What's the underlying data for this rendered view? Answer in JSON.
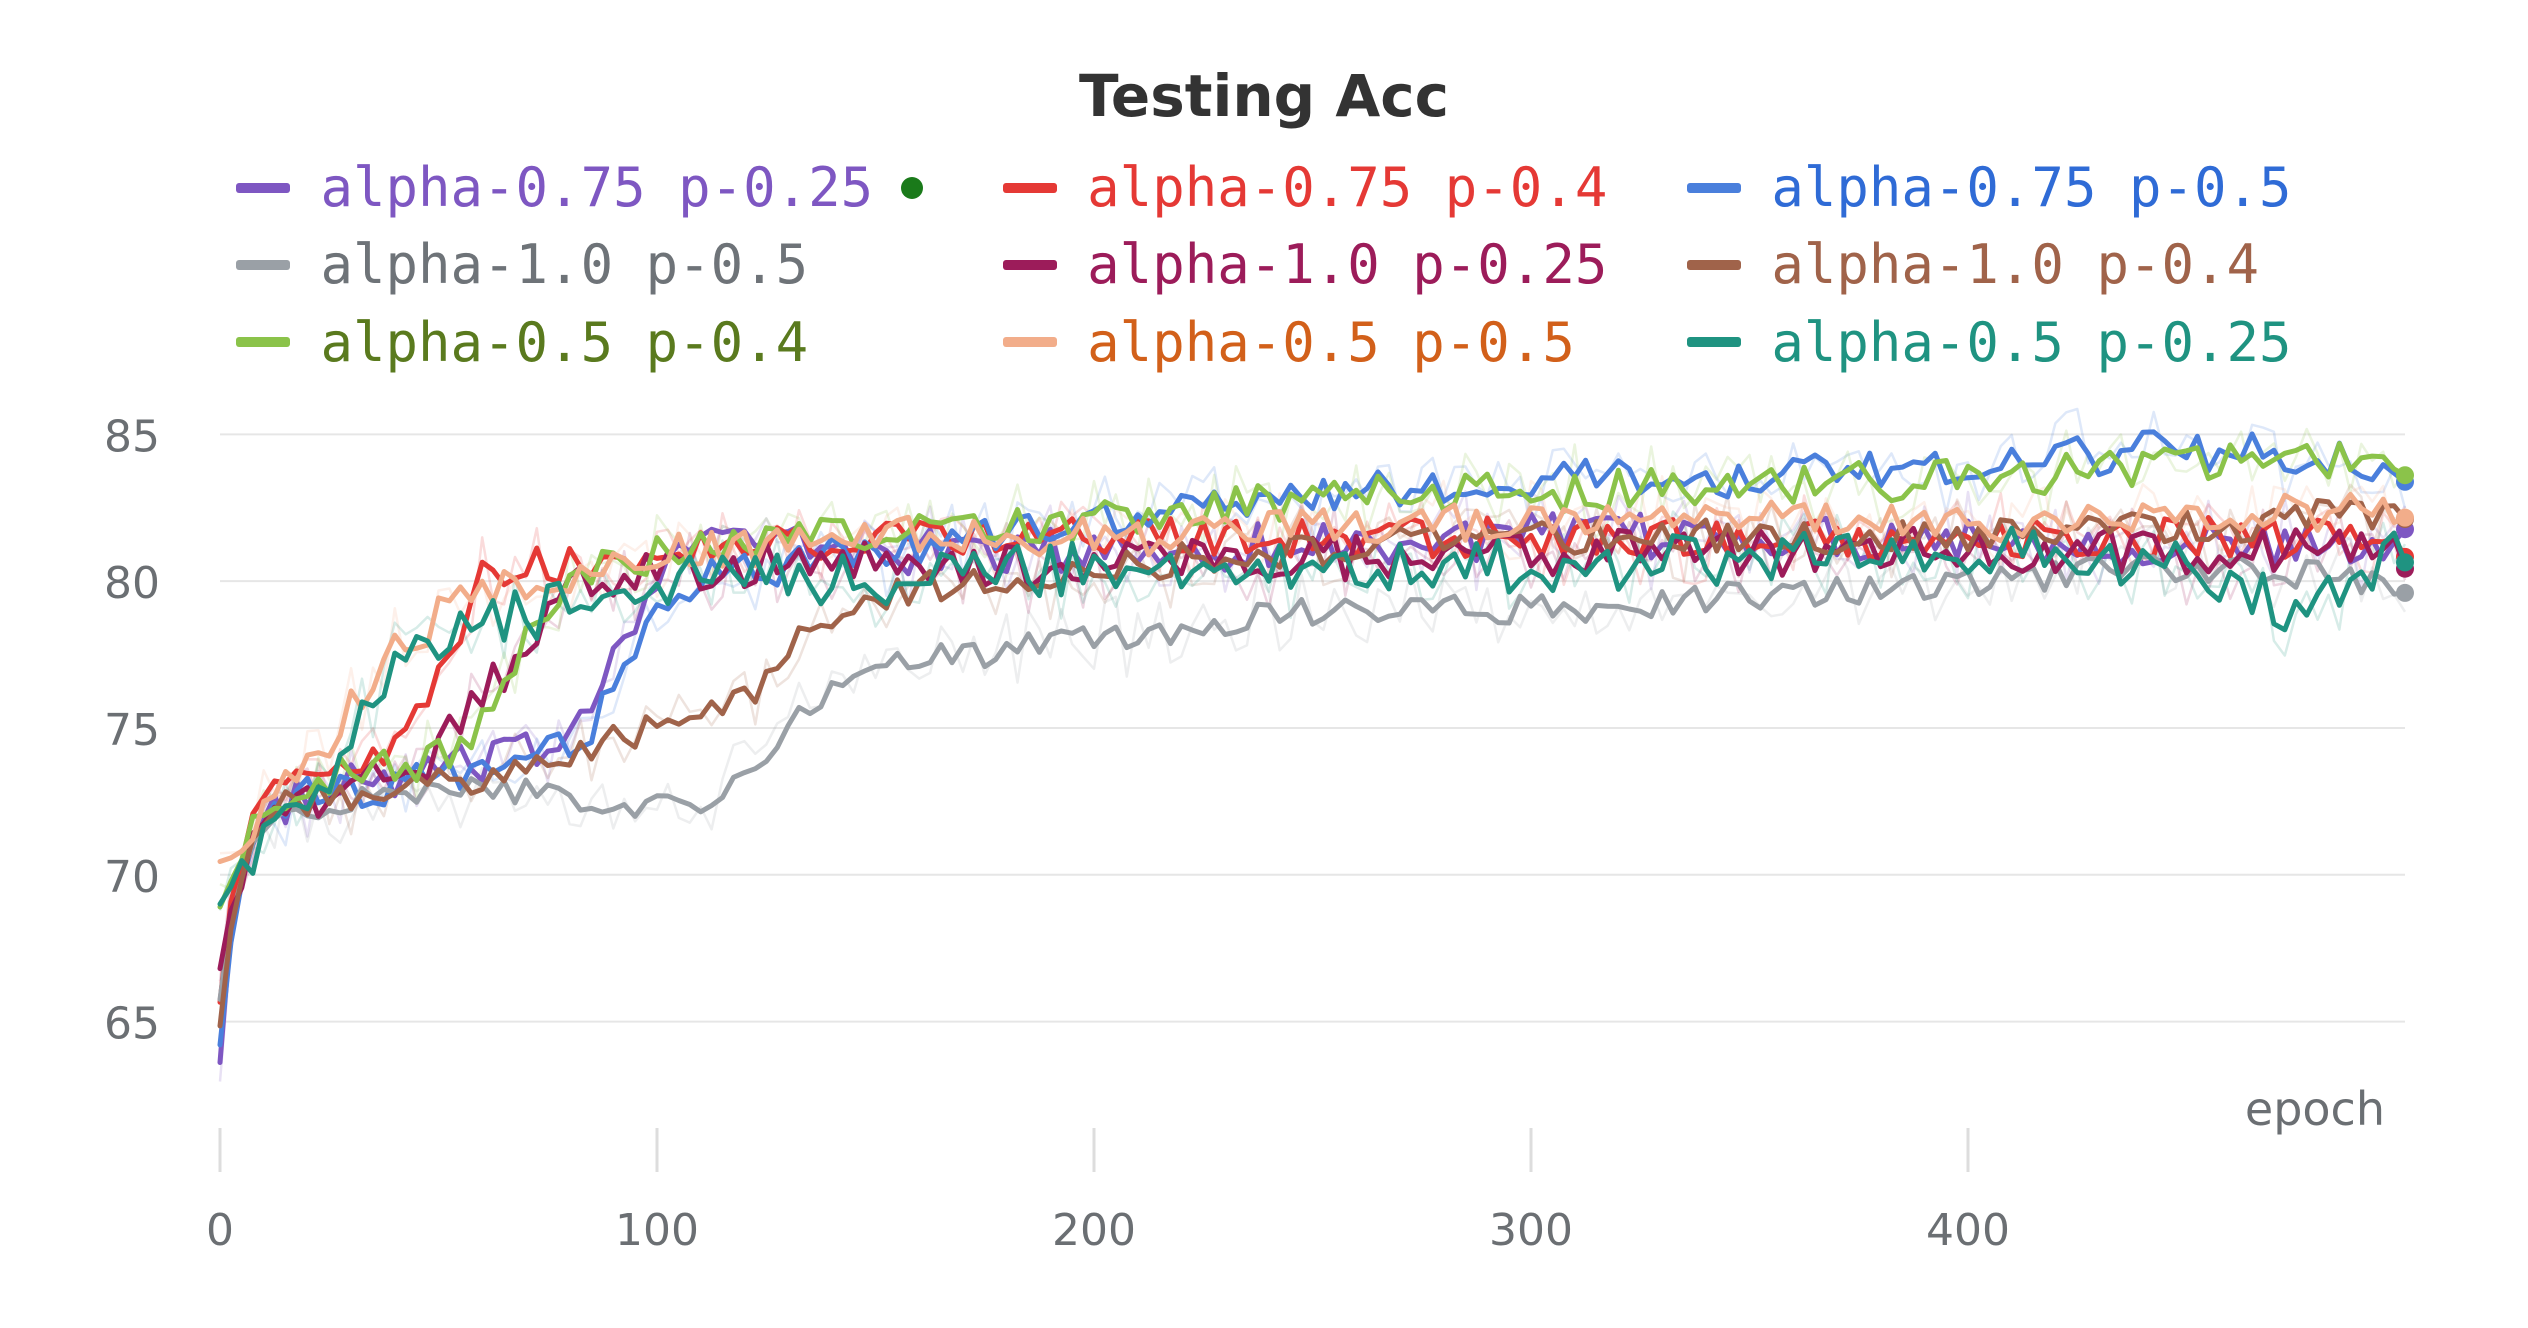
{
  "chart_data": {
    "type": "line",
    "title": "Testing Acc",
    "xlabel": "epoch",
    "ylabel": "",
    "xlim": [
      0,
      500
    ],
    "ylim": [
      62.5,
      86
    ],
    "x_ticks": [
      "0",
      "100",
      "200",
      "300",
      "400"
    ],
    "y_ticks": [
      "65",
      "70",
      "75",
      "80",
      "85"
    ],
    "grid": true,
    "legend_position": "top",
    "series": [
      {
        "name": "alpha-0.75 p-0.25",
        "color": "#7e57c2",
        "text_color": "#7e57c2",
        "marker": true,
        "points": [
          [
            0,
            64
          ],
          [
            3,
            69
          ],
          [
            8,
            71
          ],
          [
            15,
            72.5
          ],
          [
            30,
            73
          ],
          [
            50,
            73.5
          ],
          [
            70,
            74
          ],
          [
            80,
            75
          ],
          [
            90,
            77.5
          ],
          [
            100,
            80.5
          ],
          [
            110,
            81.5
          ],
          [
            150,
            81
          ],
          [
            200,
            81
          ],
          [
            300,
            81.5
          ],
          [
            400,
            81.5
          ],
          [
            500,
            81
          ]
        ],
        "noise": 0.8
      },
      {
        "name": "alpha-0.75 p-0.4",
        "color": "#e53935",
        "text_color": "#e53935",
        "points": [
          [
            0,
            66
          ],
          [
            3,
            70
          ],
          [
            8,
            72
          ],
          [
            15,
            73
          ],
          [
            25,
            73.5
          ],
          [
            40,
            74
          ],
          [
            50,
            77
          ],
          [
            60,
            80
          ],
          [
            70,
            80.5
          ],
          [
            100,
            81
          ],
          [
            150,
            81.5
          ],
          [
            200,
            81.5
          ],
          [
            300,
            81.5
          ],
          [
            400,
            81.5
          ],
          [
            500,
            81.5
          ]
        ],
        "noise": 0.7
      },
      {
        "name": "alpha-0.75 p-0.5",
        "color": "#4a7fdc",
        "text_color": "#2f6bd6",
        "points": [
          [
            0,
            64.5
          ],
          [
            3,
            68
          ],
          [
            8,
            71
          ],
          [
            15,
            72.5
          ],
          [
            40,
            73
          ],
          [
            60,
            73.5
          ],
          [
            75,
            74
          ],
          [
            85,
            75
          ],
          [
            95,
            78
          ],
          [
            105,
            80
          ],
          [
            150,
            81
          ],
          [
            200,
            82
          ],
          [
            250,
            83
          ],
          [
            300,
            83.5
          ],
          [
            350,
            83.5
          ],
          [
            400,
            84
          ],
          [
            450,
            84.5
          ],
          [
            500,
            84
          ]
        ],
        "noise": 0.7
      },
      {
        "name": "alpha-1.0 p-0.5",
        "color": "#9aa0a6",
        "text_color": "#6e7378",
        "points": [
          [
            0,
            66
          ],
          [
            3,
            69
          ],
          [
            8,
            71
          ],
          [
            15,
            72
          ],
          [
            30,
            72.5
          ],
          [
            60,
            73
          ],
          [
            90,
            72.5
          ],
          [
            110,
            72
          ],
          [
            120,
            73.5
          ],
          [
            130,
            75
          ],
          [
            145,
            77
          ],
          [
            170,
            77.5
          ],
          [
            200,
            78
          ],
          [
            250,
            79
          ],
          [
            300,
            79
          ],
          [
            350,
            79.5
          ],
          [
            400,
            80
          ],
          [
            450,
            80.5
          ],
          [
            500,
            80
          ]
        ],
        "noise": 0.5
      },
      {
        "name": "alpha-1.0 p-0.25",
        "color": "#9c1c5a",
        "text_color": "#9c1c5a",
        "points": [
          [
            0,
            67
          ],
          [
            3,
            69.5
          ],
          [
            8,
            71
          ],
          [
            15,
            72.5
          ],
          [
            30,
            73
          ],
          [
            45,
            73.5
          ],
          [
            55,
            75
          ],
          [
            65,
            77
          ],
          [
            75,
            79
          ],
          [
            85,
            80
          ],
          [
            100,
            80.5
          ],
          [
            150,
            80.5
          ],
          [
            200,
            80.5
          ],
          [
            300,
            81
          ],
          [
            400,
            81
          ],
          [
            500,
            81
          ]
        ],
        "noise": 0.8
      },
      {
        "name": "alpha-1.0 p-0.4",
        "color": "#a0634a",
        "text_color": "#a0634a",
        "points": [
          [
            0,
            65
          ],
          [
            3,
            68.5
          ],
          [
            8,
            71
          ],
          [
            15,
            72.5
          ],
          [
            40,
            73
          ],
          [
            70,
            73.5
          ],
          [
            90,
            74.5
          ],
          [
            110,
            75.5
          ],
          [
            125,
            76.5
          ],
          [
            135,
            78.5
          ],
          [
            150,
            79.5
          ],
          [
            200,
            80.5
          ],
          [
            300,
            81.5
          ],
          [
            400,
            81.5
          ],
          [
            470,
            82
          ],
          [
            500,
            82.5
          ]
        ],
        "noise": 0.6
      },
      {
        "name": "alpha-0.5 p-0.4",
        "color": "#8bc34a",
        "text_color": "#5a7a1e",
        "points": [
          [
            0,
            69
          ],
          [
            3,
            70
          ],
          [
            8,
            71.5
          ],
          [
            15,
            72.5
          ],
          [
            30,
            73.5
          ],
          [
            50,
            74
          ],
          [
            60,
            75
          ],
          [
            70,
            78
          ],
          [
            80,
            80
          ],
          [
            100,
            81
          ],
          [
            120,
            81.5
          ],
          [
            150,
            81.5
          ],
          [
            200,
            82
          ],
          [
            260,
            83
          ],
          [
            300,
            83
          ],
          [
            400,
            83.5
          ],
          [
            450,
            84
          ],
          [
            500,
            84
          ]
        ],
        "noise": 0.7
      },
      {
        "name": "alpha-0.5 p-0.5",
        "color": "#f2ad8a",
        "text_color": "#d2601a",
        "points": [
          [
            0,
            70.5
          ],
          [
            3,
            71
          ],
          [
            8,
            72
          ],
          [
            15,
            73
          ],
          [
            25,
            74.5
          ],
          [
            35,
            77
          ],
          [
            45,
            78
          ],
          [
            55,
            79.5
          ],
          [
            70,
            80
          ],
          [
            100,
            81
          ],
          [
            150,
            81.5
          ],
          [
            200,
            81.5
          ],
          [
            300,
            82
          ],
          [
            400,
            82
          ],
          [
            500,
            82.5
          ]
        ],
        "noise": 0.7
      },
      {
        "name": "alpha-0.5 p-0.25",
        "color": "#1f9381",
        "text_color": "#1f9381",
        "points": [
          [
            0,
            69
          ],
          [
            3,
            69.5
          ],
          [
            8,
            71
          ],
          [
            15,
            72.5
          ],
          [
            25,
            73.5
          ],
          [
            35,
            76
          ],
          [
            45,
            78
          ],
          [
            60,
            78.5
          ],
          [
            75,
            79
          ],
          [
            90,
            79.5
          ],
          [
            100,
            80
          ],
          [
            150,
            80
          ],
          [
            200,
            80.5
          ],
          [
            300,
            80.5
          ],
          [
            400,
            81
          ],
          [
            450,
            80.5
          ],
          [
            475,
            79
          ],
          [
            490,
            80.5
          ],
          [
            500,
            81
          ]
        ],
        "noise": 0.9
      }
    ]
  }
}
